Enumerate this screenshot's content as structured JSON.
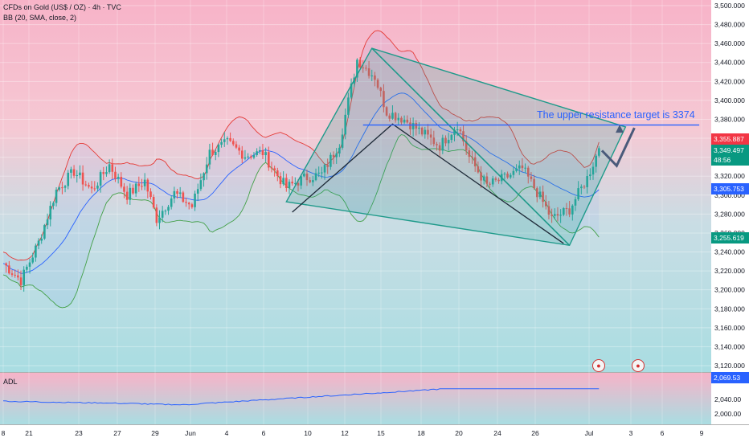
{
  "header": {
    "symbol_line": "CFDs on Gold (US$ / OZ) · 4h · TVC",
    "indicator_line": "BB (20, SMA, close, 2)"
  },
  "lower_pane": {
    "label": "ADL"
  },
  "annotation_text": "The upper resistance target is 3374",
  "price_tags": {
    "bb_upper": "3,355.887",
    "last_price": "3,349.497",
    "countdown": "48:56",
    "bb_basis": "3,305.753",
    "bb_lower": "3,255.619",
    "adl_value": "2,069.53"
  },
  "colors": {
    "bb_upper_tag": "#f23645",
    "last_price_tag": "#089981",
    "bb_basis_tag": "#2962ff",
    "bb_lower_tag": "#089981",
    "adl_tag": "#2962ff",
    "bull_candle": "#26a69a",
    "bear_candle": "#ef5350",
    "bb_upper_line": "#e53935",
    "bb_basis_line": "#2962ff",
    "bb_lower_line": "#43a047",
    "pattern_fill": "#26a69a",
    "pattern_stroke": "#1e9a8a",
    "annotation": "#2962ff"
  },
  "chart_data": {
    "type": "candlestick",
    "timeframe": "4h",
    "y_axis": {
      "min": 3120,
      "max": 3500,
      "ticks": [
        "3,120.000",
        "3,140.000",
        "3,160.000",
        "3,180.000",
        "3,200.000",
        "3,220.000",
        "3,240.000",
        "3,260.000",
        "3,280.000",
        "3,300.000",
        "3,320.000",
        "3,340.000",
        "3,360.000",
        "3,380.000",
        "3,400.000",
        "3,420.000",
        "3,440.000",
        "3,460.000",
        "3,480.000",
        "3,500.000"
      ]
    },
    "x_axis": {
      "ticks": [
        "8",
        "21",
        "23",
        "27",
        "29",
        "Jun",
        "4",
        "6",
        "10",
        "12",
        "15",
        "18",
        "20",
        "24",
        "26",
        "Jul",
        "3",
        "6",
        "9"
      ]
    },
    "price_path": [
      {
        "i": 0,
        "p": 3228
      },
      {
        "i": 6,
        "p": 3210
      },
      {
        "i": 12,
        "p": 3250
      },
      {
        "i": 18,
        "p": 3305
      },
      {
        "i": 24,
        "p": 3325
      },
      {
        "i": 30,
        "p": 3305
      },
      {
        "i": 36,
        "p": 3332
      },
      {
        "i": 42,
        "p": 3300
      },
      {
        "i": 48,
        "p": 3315
      },
      {
        "i": 52,
        "p": 3275
      },
      {
        "i": 58,
        "p": 3302
      },
      {
        "i": 64,
        "p": 3288
      },
      {
        "i": 70,
        "p": 3345
      },
      {
        "i": 76,
        "p": 3355
      },
      {
        "i": 82,
        "p": 3342
      },
      {
        "i": 88,
        "p": 3345
      },
      {
        "i": 92,
        "p": 3325
      },
      {
        "i": 96,
        "p": 3308
      },
      {
        "i": 102,
        "p": 3318
      },
      {
        "i": 108,
        "p": 3322
      },
      {
        "i": 114,
        "p": 3355
      },
      {
        "i": 120,
        "p": 3443
      },
      {
        "i": 126,
        "p": 3425
      },
      {
        "i": 130,
        "p": 3388
      },
      {
        "i": 136,
        "p": 3380
      },
      {
        "i": 142,
        "p": 3366
      },
      {
        "i": 148,
        "p": 3352
      },
      {
        "i": 154,
        "p": 3375
      },
      {
        "i": 158,
        "p": 3340
      },
      {
        "i": 164,
        "p": 3310
      },
      {
        "i": 170,
        "p": 3318
      },
      {
        "i": 176,
        "p": 3328
      },
      {
        "i": 182,
        "p": 3298
      },
      {
        "i": 186,
        "p": 3275
      },
      {
        "i": 192,
        "p": 3285
      },
      {
        "i": 198,
        "p": 3318
      },
      {
        "i": 202,
        "p": 3349
      }
    ],
    "bollinger": {
      "length": 20,
      "ma": "SMA",
      "source": "close",
      "mult": 2,
      "last": {
        "upper": 3355.887,
        "basis": 3305.753,
        "lower": 3255.619
      }
    },
    "last_price": 3349.497,
    "annotations": {
      "resistance_level": 3374,
      "pattern": "descending broadening wedge",
      "text": "The upper resistance target is 3374"
    },
    "adl": {
      "label": "ADL",
      "ticks": [
        "2,000.00",
        "2,040.00"
      ],
      "last": 2069.53
    },
    "grid": true
  }
}
